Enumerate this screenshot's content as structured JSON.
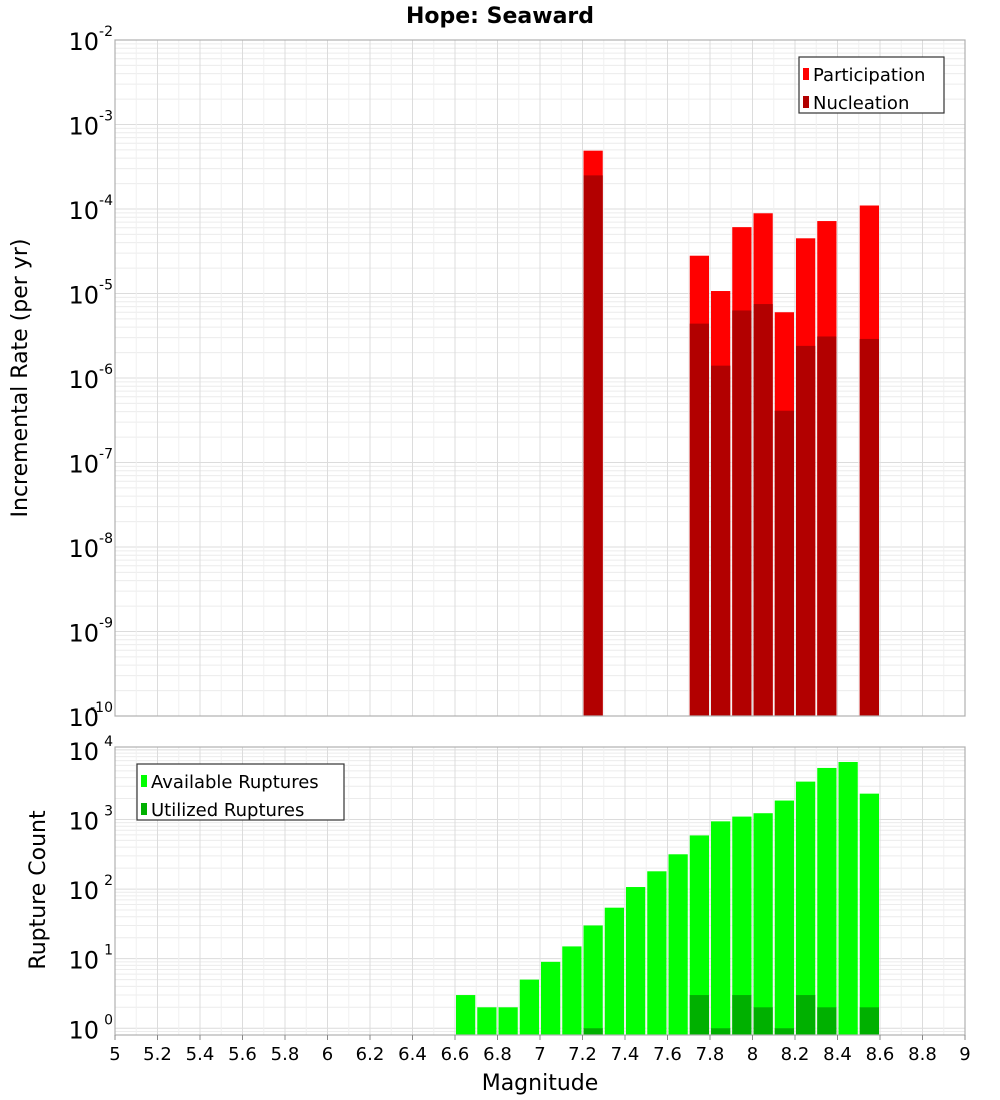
{
  "chart_data": [
    {
      "type": "bar",
      "title": "Hope: Seaward",
      "xlabel": "Magnitude",
      "ylabel": "Incremental Rate (per yr)",
      "yscale": "log",
      "xlim": [
        5,
        9
      ],
      "ylim": [
        1e-10,
        0.01
      ],
      "bin_width": 0.1,
      "legend_placement": "top-right",
      "x": [
        7.25,
        7.75,
        7.85,
        7.95,
        8.05,
        8.15,
        8.25,
        8.35,
        8.55
      ],
      "series": [
        {
          "name": "Participation",
          "color": "#ff0000",
          "values": [
            0.00049,
            2.8e-05,
            1.07e-05,
            6.1e-05,
            8.9e-05,
            6e-06,
            4.5e-05,
            7.2e-05,
            0.00011
          ]
        },
        {
          "name": "Nucleation",
          "color": "#b20000",
          "values": [
            0.00025,
            4.4e-06,
            1.4e-06,
            6.3e-06,
            7.5e-06,
            4.1e-07,
            2.4e-06,
            3.1e-06,
            2.9e-06
          ]
        }
      ],
      "y_ticks": [
        {
          "base": "10",
          "exp": "-2"
        },
        {
          "base": "10",
          "exp": "-3"
        },
        {
          "base": "10",
          "exp": "-4"
        },
        {
          "base": "10",
          "exp": "-5"
        },
        {
          "base": "10",
          "exp": "-6"
        },
        {
          "base": "10",
          "exp": "-7"
        },
        {
          "base": "10",
          "exp": "-8"
        },
        {
          "base": "10",
          "exp": "-9"
        },
        {
          "base": "10",
          "exp": "-10"
        }
      ]
    },
    {
      "type": "bar",
      "xlabel": "Magnitude",
      "ylabel": "Rupture Count",
      "yscale": "log",
      "xlim": [
        5,
        9
      ],
      "ylim": [
        0.8,
        11000
      ],
      "bin_width": 0.1,
      "legend_placement": "top-left",
      "x": [
        6.65,
        6.75,
        6.85,
        6.95,
        7.05,
        7.15,
        7.25,
        7.35,
        7.45,
        7.55,
        7.65,
        7.75,
        7.85,
        7.95,
        8.05,
        8.15,
        8.25,
        8.35,
        8.45,
        8.55
      ],
      "series": [
        {
          "name": "Available Ruptures",
          "color": "#00ff00",
          "values": [
            3,
            2,
            2,
            5,
            9,
            15,
            30,
            54,
            107,
            180,
            316,
            590,
            940,
            1100,
            1230,
            1870,
            3500,
            5500,
            6700,
            2350
          ]
        },
        {
          "name": "Utilized Ruptures",
          "color": "#00b000",
          "values": [
            0,
            0,
            0,
            0,
            0,
            0,
            1,
            0,
            0,
            0,
            0,
            3,
            1,
            3,
            2,
            1,
            3,
            2,
            0,
            2
          ]
        }
      ],
      "y_ticks": [
        {
          "base": "10",
          "exp": "4"
        },
        {
          "base": "10",
          "exp": "3"
        },
        {
          "base": "10",
          "exp": "2"
        },
        {
          "base": "10",
          "exp": "1"
        },
        {
          "base": "10",
          "exp": "0"
        }
      ],
      "x_ticks": [
        "5",
        "5.2",
        "5.4",
        "5.6",
        "5.8",
        "6",
        "6.2",
        "6.4",
        "6.6",
        "6.8",
        "7",
        "7.2",
        "7.4",
        "7.6",
        "7.8",
        "8",
        "8.2",
        "8.4",
        "8.6",
        "8.8",
        "9"
      ]
    }
  ]
}
